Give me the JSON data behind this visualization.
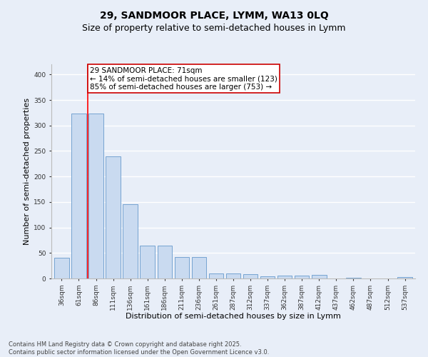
{
  "title_line1": "29, SANDMOOR PLACE, LYMM, WA13 0LQ",
  "title_line2": "Size of property relative to semi-detached houses in Lymm",
  "xlabel": "Distribution of semi-detached houses by size in Lymm",
  "ylabel": "Number of semi-detached properties",
  "categories": [
    "36sqm",
    "61sqm",
    "86sqm",
    "111sqm",
    "136sqm",
    "161sqm",
    "186sqm",
    "211sqm",
    "236sqm",
    "261sqm",
    "287sqm",
    "312sqm",
    "337sqm",
    "362sqm",
    "387sqm",
    "412sqm",
    "437sqm",
    "462sqm",
    "487sqm",
    "512sqm",
    "537sqm"
  ],
  "values": [
    40,
    323,
    323,
    240,
    145,
    65,
    65,
    42,
    42,
    10,
    10,
    8,
    4,
    5,
    5,
    7,
    0,
    1,
    0,
    0,
    3
  ],
  "bar_color": "#c9daf0",
  "bar_edge_color": "#6699cc",
  "red_line_x": 1.5,
  "annotation_text": "29 SANDMOOR PLACE: 71sqm\n← 14% of semi-detached houses are smaller (123)\n85% of semi-detached houses are larger (753) →",
  "annotation_box_facecolor": "#ffffff",
  "annotation_box_edgecolor": "#cc0000",
  "annotation_text_color": "#000000",
  "ylim": [
    0,
    420
  ],
  "yticks": [
    0,
    50,
    100,
    150,
    200,
    250,
    300,
    350,
    400
  ],
  "background_color": "#e8eef8",
  "grid_color": "#ffffff",
  "footer_line1": "Contains HM Land Registry data © Crown copyright and database right 2025.",
  "footer_line2": "Contains public sector information licensed under the Open Government Licence v3.0.",
  "title_fontsize": 10,
  "subtitle_fontsize": 9,
  "xlabel_fontsize": 8,
  "ylabel_fontsize": 8,
  "tick_fontsize": 6.5,
  "annotation_fontsize": 7.5,
  "footer_fontsize": 6
}
